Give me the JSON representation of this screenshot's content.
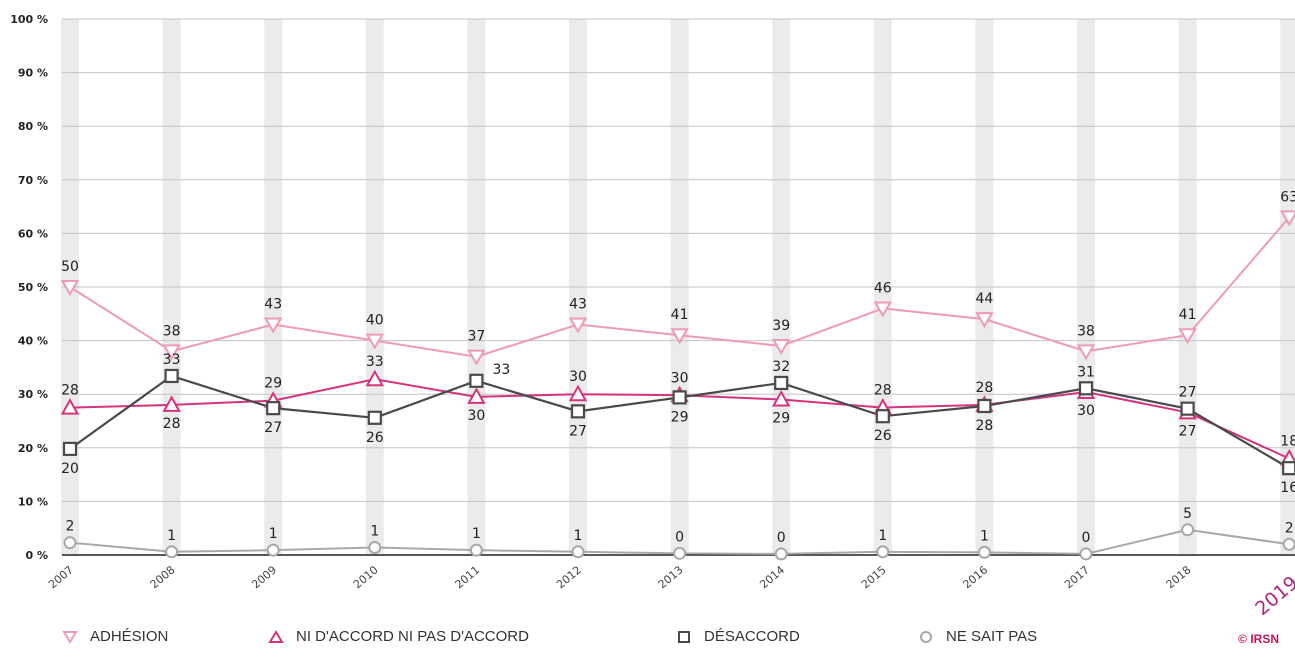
{
  "chart_data": {
    "type": "line",
    "title": "",
    "xlabel": "",
    "ylabel": "",
    "x": [
      "2007",
      "2008",
      "2009",
      "2010",
      "2011",
      "2012",
      "2013",
      "2014",
      "2015",
      "2016",
      "2017",
      "2018",
      "2019"
    ],
    "highlight_x": "2019",
    "ylim": [
      0,
      100
    ],
    "yticks": [
      "0 %",
      "10 %",
      "20 %",
      "30 %",
      "40 %",
      "50 %",
      "60 %",
      "70 %",
      "80 %",
      "90 %",
      "100 %"
    ],
    "grid": true,
    "legend_position": "bottom",
    "series": [
      {
        "name": "ADHÉSION",
        "color": "#ee9ab8",
        "marker": "triangle-down",
        "values": [
          50,
          38,
          43,
          40,
          37,
          43,
          41,
          39,
          46,
          44,
          38,
          41,
          63
        ],
        "labels": [
          "50",
          "38",
          "43",
          "40",
          "37",
          "43",
          "41",
          "39",
          "46",
          "44",
          "38",
          "41",
          "63"
        ]
      },
      {
        "name": "NI D'ACCORD NI PAS D'ACCORD",
        "color": "#d6337f",
        "marker": "triangle-up",
        "values": [
          27.5,
          28,
          28.8,
          32.8,
          29.5,
          30,
          29.8,
          29,
          27.5,
          28,
          30.4,
          26.6,
          18
        ],
        "labels": [
          "28",
          "28",
          "29",
          "33",
          "30",
          "30",
          "30",
          "29",
          "28",
          "28",
          "30",
          "27",
          "18"
        ]
      },
      {
        "name": "DÉSACCORD",
        "color": "#4a4a4a",
        "marker": "square",
        "values": [
          19.8,
          33.4,
          27.4,
          25.6,
          32.5,
          26.8,
          29.4,
          32.1,
          25.9,
          27.8,
          31.1,
          27.3,
          16.2
        ],
        "labels": [
          "20",
          "33",
          "27",
          "26",
          "33",
          "27",
          "29",
          "32",
          "26",
          "28",
          "31",
          "27",
          "16"
        ]
      },
      {
        "name": "NE SAIT PAS",
        "color": "#a8a8a8",
        "marker": "circle",
        "values": [
          2.3,
          0.6,
          0.9,
          1.4,
          0.9,
          0.6,
          0.3,
          0.2,
          0.6,
          0.5,
          0.2,
          4.7,
          2
        ],
        "labels": [
          "2",
          "1",
          "1",
          "1",
          "1",
          "1",
          "0",
          "0",
          "1",
          "1",
          "0",
          "5",
          "2"
        ]
      }
    ]
  },
  "legend": {
    "items": [
      "ADHÉSION",
      "NI D'ACCORD NI PAS D'ACCORD",
      "DÉSACCORD",
      "NE SAIT PAS"
    ]
  },
  "copyright": "© IRSN"
}
